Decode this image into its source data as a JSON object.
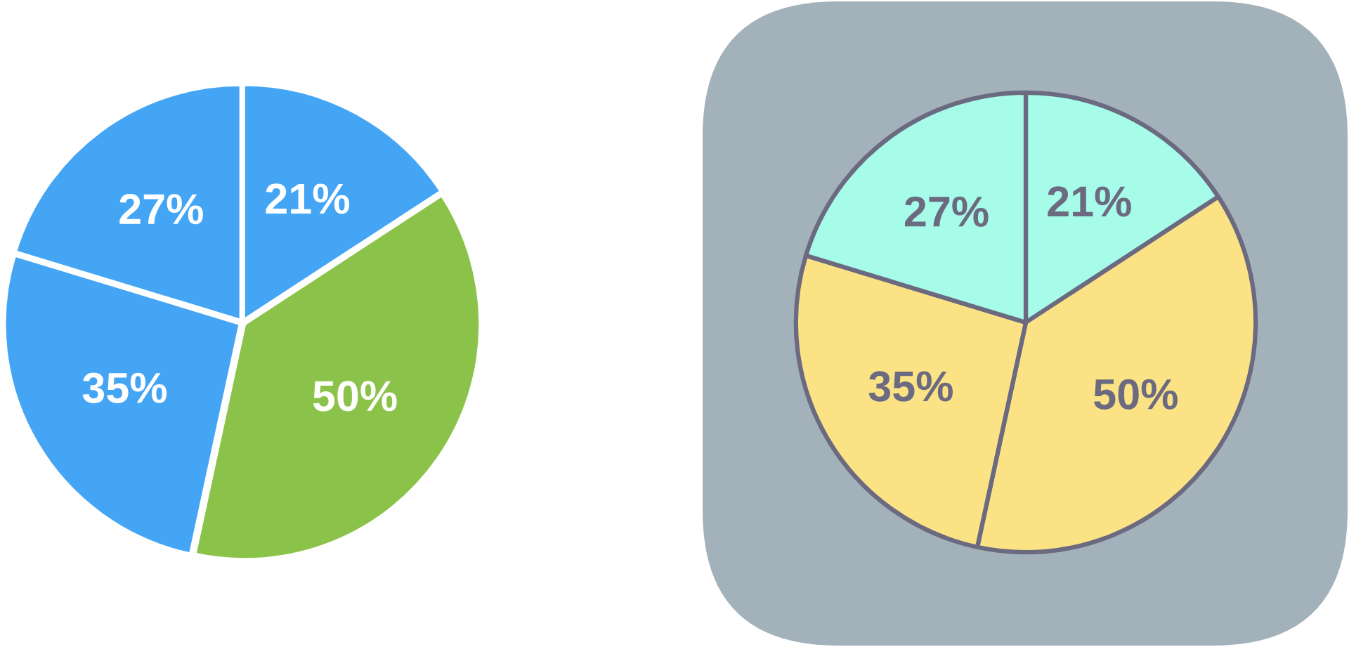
{
  "chart_data": [
    {
      "type": "pie",
      "values": [
        21,
        50,
        35,
        27
      ],
      "colors": [
        "#45a5f5",
        "#8bc34a",
        "#45a5f5",
        "#45a5f5"
      ],
      "value_labels": [
        "21%",
        "50%",
        "35%",
        "27%"
      ]
    },
    {
      "type": "pie",
      "values": [
        21,
        50,
        35,
        27
      ],
      "colors": [
        "#a6fbe9",
        "#fbe385",
        "#fbe385",
        "#a6fbe9"
      ],
      "value_labels": [
        "21%",
        "50%",
        "35%",
        "27%"
      ]
    }
  ]
}
